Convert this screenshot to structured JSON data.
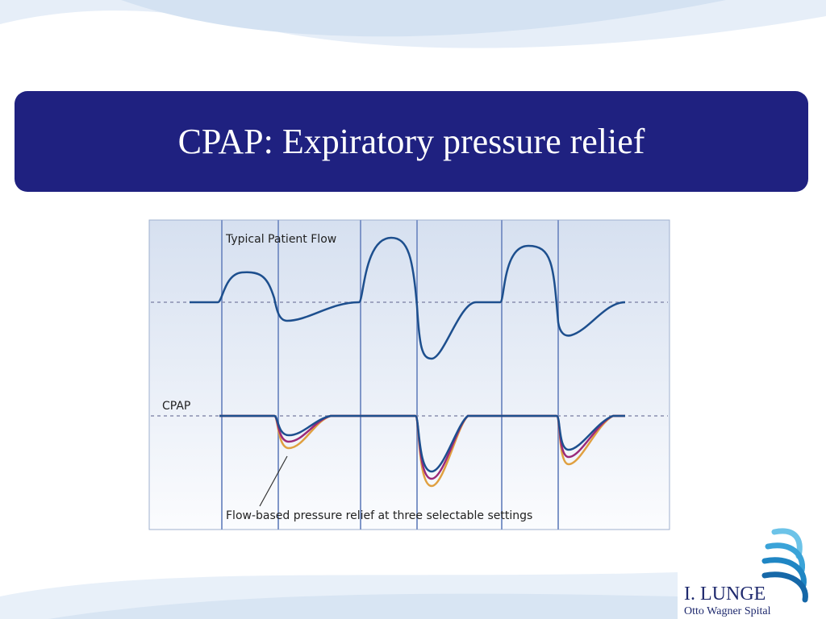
{
  "slide": {
    "title": "CPAP: Expiratory pressure relief"
  },
  "figure": {
    "flow_label": "Typical Patient Flow",
    "cpap_label": "CPAP",
    "relief_label": "Flow-based pressure relief at three selectable settings"
  },
  "logo": {
    "name": "I. LUNGE",
    "subtitle": "Otto Wagner Spital"
  }
}
